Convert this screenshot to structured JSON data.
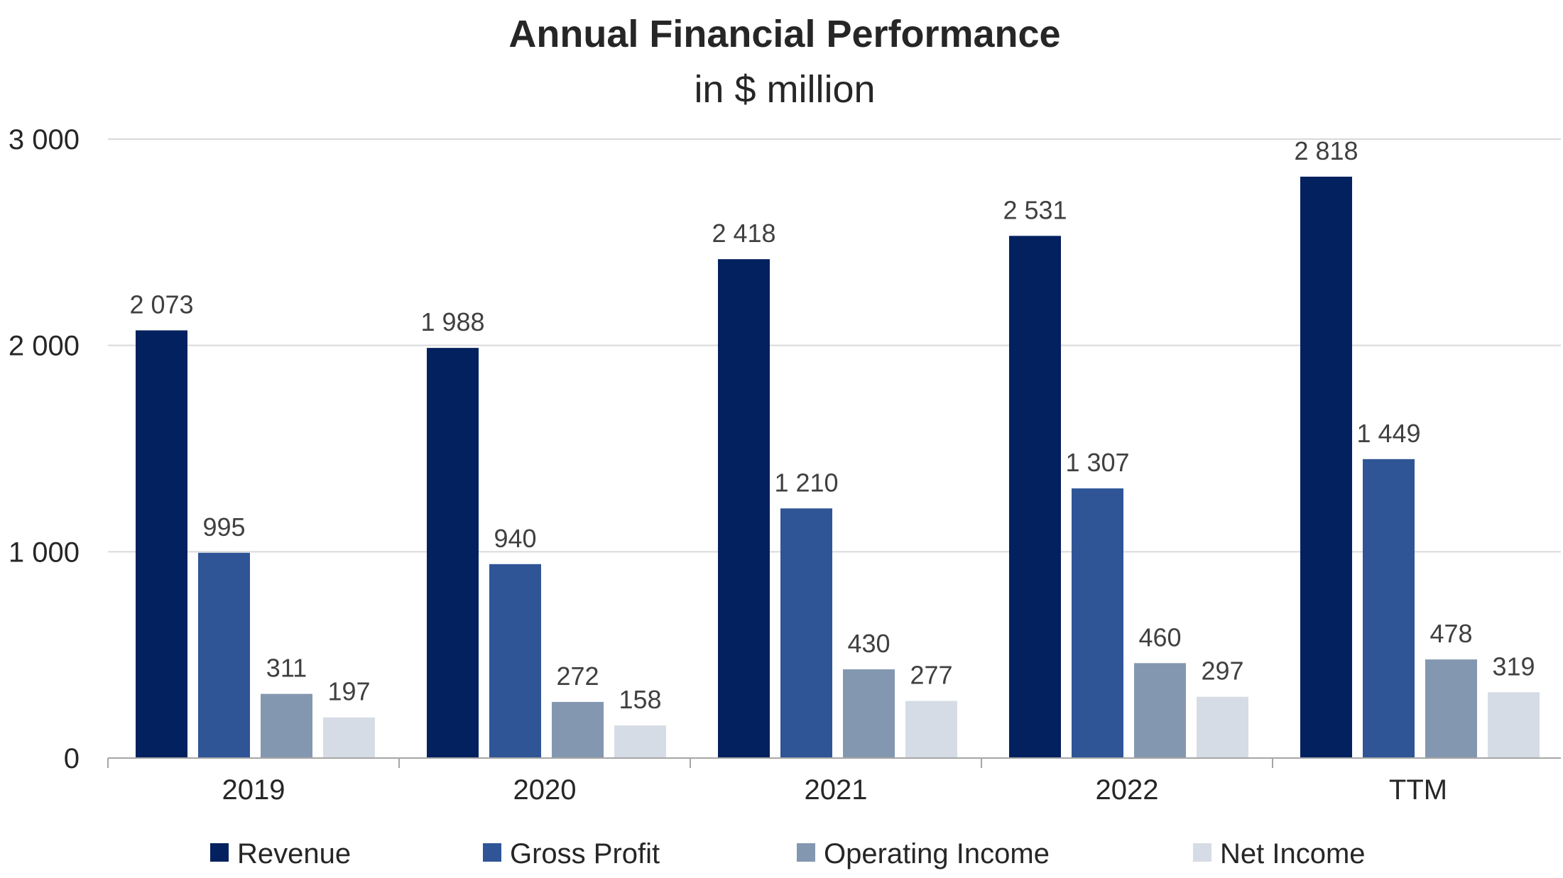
{
  "chart_data": {
    "type": "bar",
    "title": "Annual Financial Performance",
    "subtitle": "in $ million",
    "categories": [
      "2019",
      "2020",
      "2021",
      "2022",
      "TTM"
    ],
    "series": [
      {
        "name": "Revenue",
        "color": "#03215E",
        "values": [
          2073,
          1988,
          2418,
          2531,
          2818
        ],
        "labels": [
          "2 073",
          "1 988",
          "2 418",
          "2 531",
          "2 818"
        ]
      },
      {
        "name": "Gross Profit",
        "color": "#2F5597",
        "values": [
          995,
          940,
          1210,
          1307,
          1449
        ],
        "labels": [
          "995",
          "940",
          "1 210",
          "1 307",
          "1 449"
        ]
      },
      {
        "name": "Operating Income",
        "color": "#8497B0",
        "values": [
          311,
          272,
          430,
          460,
          478
        ],
        "labels": [
          "311",
          "272",
          "430",
          "460",
          "478"
        ]
      },
      {
        "name": "Net Income",
        "color": "#D6DCE5",
        "values": [
          197,
          158,
          277,
          297,
          319
        ],
        "labels": [
          "197",
          "158",
          "277",
          "297",
          "319"
        ]
      }
    ],
    "ylim": [
      0,
      3000
    ],
    "yticks": [
      0,
      1000,
      2000,
      3000
    ],
    "ytick_labels": [
      "0",
      "1 000",
      "2 000",
      "3 000"
    ],
    "xlabel": "",
    "ylabel": "",
    "grid": true,
    "legend_position": "bottom"
  }
}
